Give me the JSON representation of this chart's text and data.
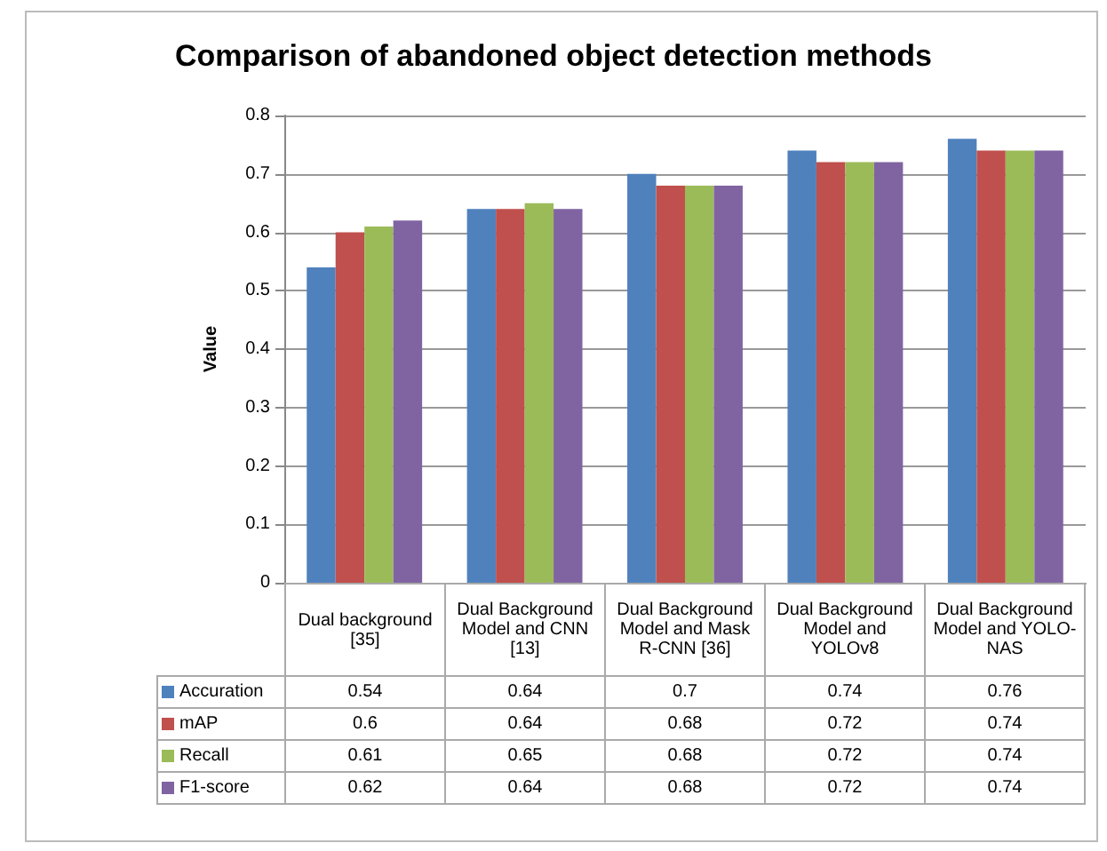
{
  "chart_data": {
    "type": "bar",
    "title": "Comparison of abandoned object detection methods",
    "ylabel": "Value",
    "categories": [
      "Dual background [35]",
      "Dual Background Model and CNN [13]",
      "Dual Background Model and Mask R-CNN [36]",
      "Dual Background Model and YOLOv8",
      "Dual Background Model and YOLO-NAS"
    ],
    "series": [
      {
        "name": "Accuration",
        "color": "#4f81bd",
        "values": [
          0.54,
          0.64,
          0.7,
          0.74,
          0.76
        ]
      },
      {
        "name": "mAP",
        "color": "#c0504d",
        "values": [
          0.6,
          0.64,
          0.68,
          0.72,
          0.74
        ]
      },
      {
        "name": "Recall",
        "color": "#9bbb59",
        "values": [
          0.61,
          0.65,
          0.68,
          0.72,
          0.74
        ]
      },
      {
        "name": "F1-score",
        "color": "#8064a2",
        "values": [
          0.62,
          0.64,
          0.68,
          0.72,
          0.74
        ]
      }
    ],
    "ylim": [
      0,
      0.8
    ],
    "yticks": [
      0,
      0.1,
      0.2,
      0.3,
      0.4,
      0.5,
      0.6,
      0.7,
      0.8
    ],
    "grid": "y",
    "legend": "bottom",
    "data_labels": true
  }
}
